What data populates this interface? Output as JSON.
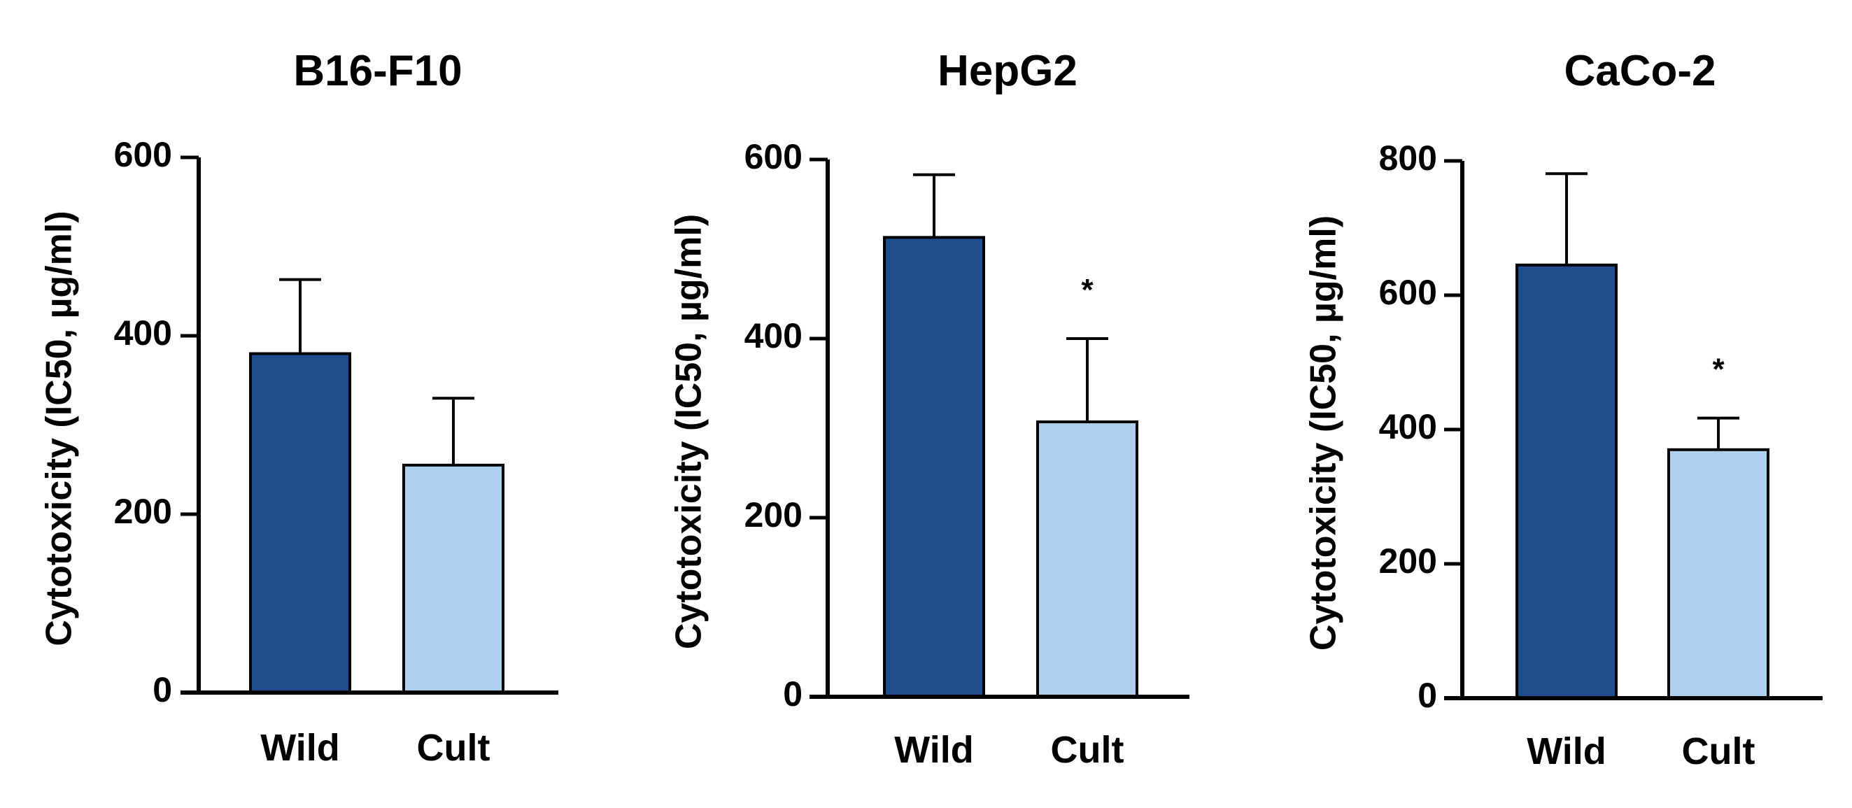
{
  "chart_data": [
    {
      "type": "bar",
      "title": "B16-F10",
      "ylabel": "Cytotoxicity (IC50, µg/ml)",
      "xlabel": "",
      "categories": [
        "Wild",
        "Cult"
      ],
      "values": [
        380,
        255
      ],
      "errors": [
        83,
        75
      ],
      "significance": [
        "",
        ""
      ],
      "colors": [
        "#1f4e8f",
        "#aed0ec"
      ],
      "ylim": [
        0,
        600
      ],
      "yticks": [
        0,
        200,
        400,
        600
      ],
      "grid": false
    },
    {
      "type": "bar",
      "title": "HepG2",
      "ylabel": "Cytotoxicity (IC50, µg/ml)",
      "xlabel": "",
      "categories": [
        "Wild",
        "Cult"
      ],
      "values": [
        513,
        307
      ],
      "errors": [
        70,
        93
      ],
      "significance": [
        "",
        "*"
      ],
      "colors": [
        "#1f4e8f",
        "#aed0ec"
      ],
      "ylim": [
        0,
        600
      ],
      "yticks": [
        0,
        200,
        400,
        600
      ],
      "grid": false
    },
    {
      "type": "bar",
      "title": "CaCo-2",
      "ylabel": "Cytotoxicity (IC50, µg/ml)",
      "xlabel": "",
      "categories": [
        "Wild",
        "Cult"
      ],
      "values": [
        645,
        370
      ],
      "errors": [
        136,
        47
      ],
      "significance": [
        "",
        "*"
      ],
      "colors": [
        "#1f4e8f",
        "#aed0ec"
      ],
      "ylim": [
        0,
        800
      ],
      "yticks": [
        0,
        200,
        400,
        600,
        800
      ],
      "grid": false
    }
  ]
}
